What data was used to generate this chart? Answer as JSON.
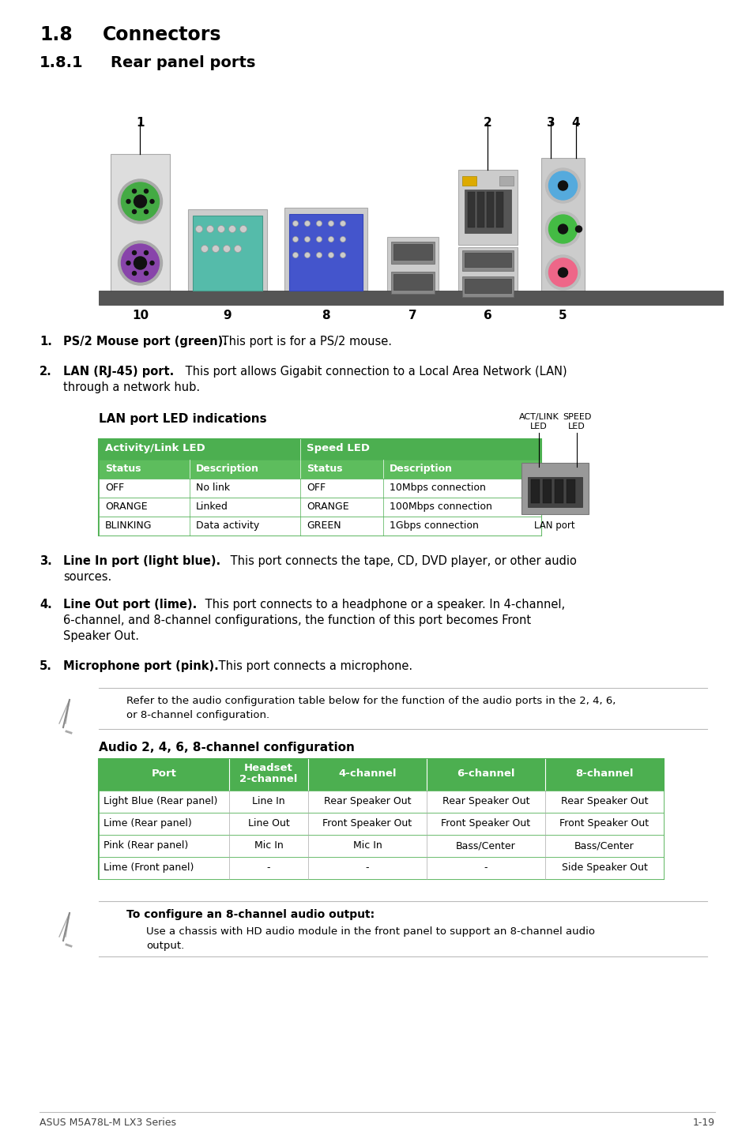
{
  "bg_color": "#FFFFFF",
  "title1": "1.8",
  "title1_text": "Connectors",
  "title2": "1.8.1",
  "title2_text": "Rear panel ports",
  "footer_left": "ASUS M5A78L-M LX3 Series",
  "footer_right": "1-19",
  "green_dark": "#3DAA3D",
  "green_mid": "#5CB85C",
  "green_header": "#4CAF50",
  "lan_table_rows": [
    [
      "OFF",
      "No link",
      "OFF",
      "10Mbps connection"
    ],
    [
      "ORANGE",
      "Linked",
      "ORANGE",
      "100Mbps connection"
    ],
    [
      "BLINKING",
      "Data activity",
      "GREEN",
      "1Gbps connection"
    ]
  ],
  "audio_table_rows": [
    [
      "Light Blue (Rear panel)",
      "Line In",
      "Rear Speaker Out",
      "Rear Speaker Out",
      "Rear Speaker Out"
    ],
    [
      "Lime (Rear panel)",
      "Line Out",
      "Front Speaker Out",
      "Front Speaker Out",
      "Front Speaker Out"
    ],
    [
      "Pink (Rear panel)",
      "Mic In",
      "Mic In",
      "Bass/Center",
      "Bass/Center"
    ],
    [
      "Lime (Front panel)",
      "-",
      "-",
      "-",
      "Side Speaker Out"
    ]
  ]
}
